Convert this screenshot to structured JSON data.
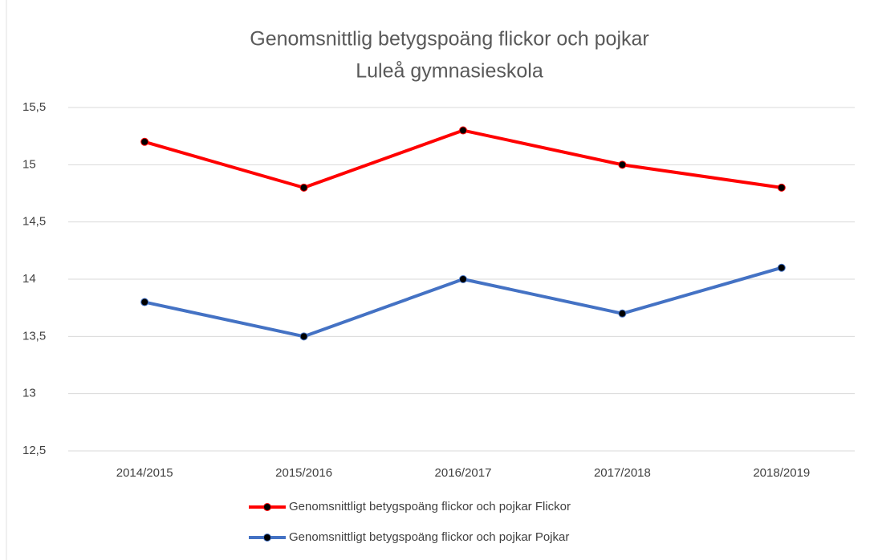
{
  "chart_data": {
    "type": "line",
    "title": "Genomsnittlig betygspoäng flickor och pojkar",
    "subtitle": "Luleå gymnasieskola",
    "categories": [
      "2014/2015",
      "2015/2016",
      "2016/2017",
      "2017/2018",
      "2018/2019"
    ],
    "series": [
      {
        "name": "Genomsnittligt betygspoäng flickor och pojkar  Flickor",
        "color": "#ff0000",
        "values": [
          15.2,
          14.8,
          15.3,
          15.0,
          14.8
        ]
      },
      {
        "name": "Genomsnittligt betygspoäng flickor och pojkar  Pojkar",
        "color": "#4472c4",
        "values": [
          13.8,
          13.5,
          14.0,
          13.7,
          14.1
        ]
      }
    ],
    "ylim": [
      12.5,
      15.5
    ],
    "yticks": [
      {
        "value": 12.5,
        "label": "12,5"
      },
      13,
      {
        "value": 13.5,
        "label": "13,5"
      },
      14,
      {
        "value": 14.5,
        "label": "14,5"
      },
      15,
      {
        "value": 15.5,
        "label": "15,5"
      }
    ],
    "grid": true
  }
}
